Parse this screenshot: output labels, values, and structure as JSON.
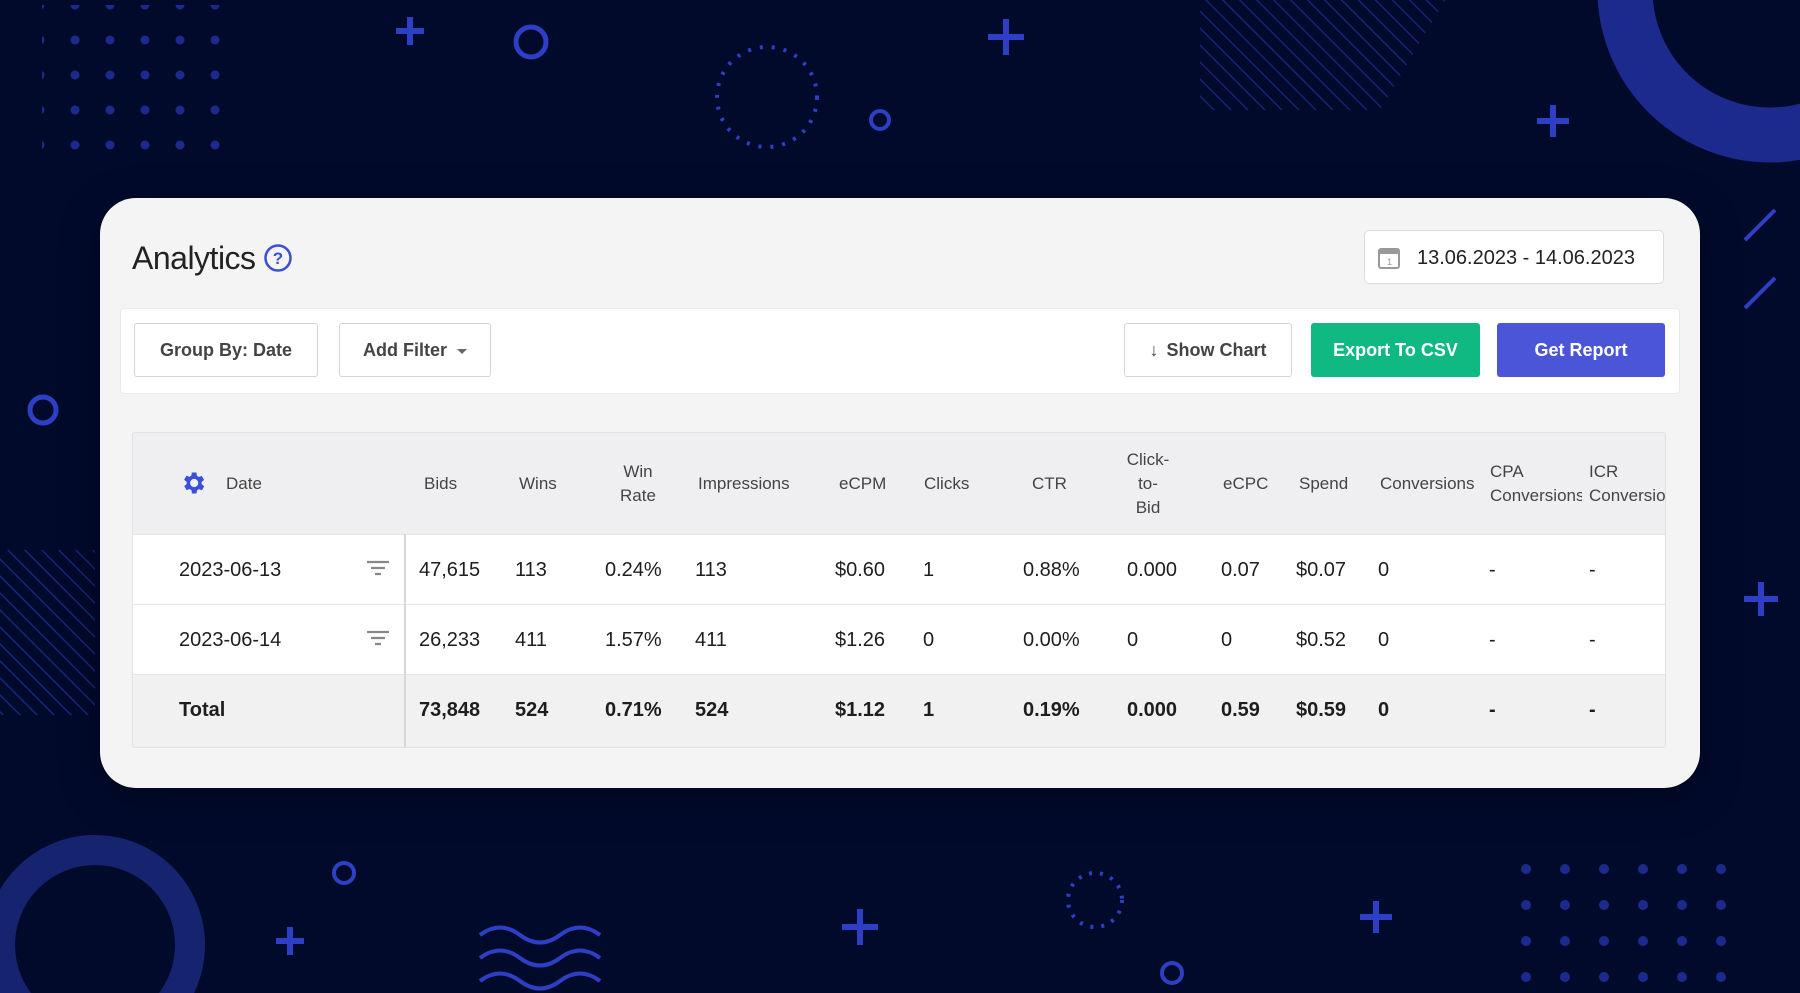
{
  "page": {
    "title": "Analytics",
    "date_range": "13.06.2023 - 14.06.2023",
    "icons": {
      "help": "question-circle-icon",
      "calendar": "calendar-icon",
      "settings": "gear-icon",
      "row_filter": "filter-lines-icon",
      "dropdown": "caret-down-icon",
      "show_chart": "arrow-down-icon"
    }
  },
  "toolbar": {
    "group_by_label": "Group By: Date",
    "add_filter_label": "Add Filter",
    "show_chart_label": "Show Chart",
    "show_chart_arrow": "↓",
    "export_csv_label": "Export To CSV",
    "get_report_label": "Get Report"
  },
  "table": {
    "columns": [
      "Date",
      "Bids",
      "Wins",
      "Win\nRate",
      "Impressions",
      "eCPM",
      "Clicks",
      "CTR",
      "Click-\nto-\nBid",
      "eCPC",
      "Spend",
      "Conversions",
      "CPA\nConversions",
      "ICR\nConversion"
    ],
    "rows": [
      [
        "2023-06-13",
        "47,615",
        "113",
        "0.24%",
        "113",
        "$0.60",
        "1",
        "0.88%",
        "0.000",
        "0.07",
        "$0.07",
        "0",
        "-",
        "-"
      ],
      [
        "2023-06-14",
        "26,233",
        "411",
        "1.57%",
        "411",
        "$1.26",
        "0",
        "0.00%",
        "0",
        "0",
        "$0.52",
        "0",
        "-",
        "-"
      ]
    ],
    "total": [
      "Total",
      "73,848",
      "524",
      "0.71%",
      "524",
      "$1.12",
      "1",
      "0.19%",
      "0.000",
      "0.59",
      "$0.59",
      "0",
      "-",
      "-"
    ]
  },
  "colors": {
    "background": "#020a2c",
    "accent_blue": "#4a55d8",
    "export_green": "#10b981",
    "decor_blue": "#1a2a8a"
  }
}
